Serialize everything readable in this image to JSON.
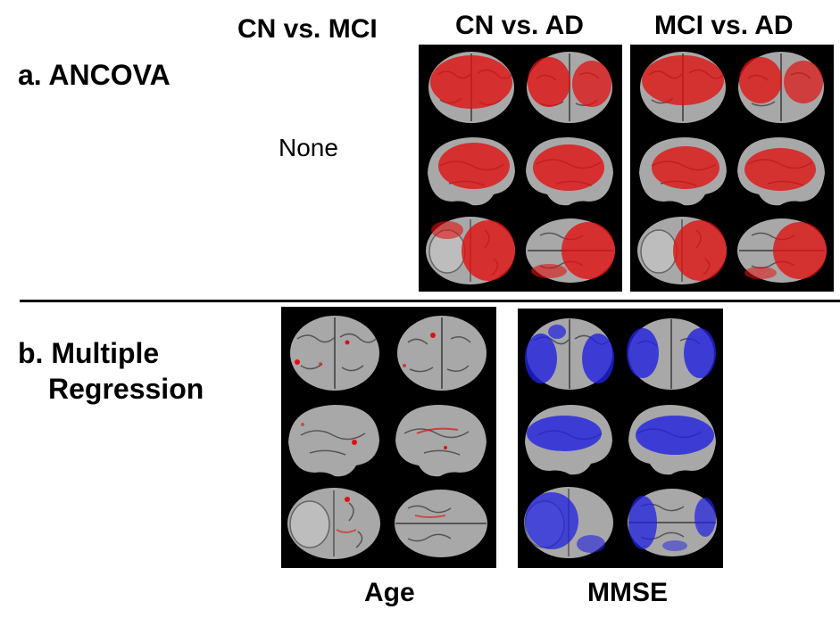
{
  "columns": {
    "cn_mci": "CN vs. MCI",
    "cn_ad": "CN vs. AD",
    "mci_ad": "MCI vs. AD"
  },
  "section_a": {
    "letter": "a.",
    "title": "ANCOVA",
    "none_label": "None"
  },
  "section_b": {
    "letter": "b.",
    "title_line1": "Multiple",
    "title_line2": "Regression"
  },
  "captions": {
    "age": "Age",
    "mmse": "MMSE"
  },
  "colors": {
    "ancova_overlay": "#e01010",
    "age_overlay": "#e01010",
    "mmse_overlay": "#2020e0",
    "brain_base": "#a8a8a8",
    "panel_bg": "#000000"
  },
  "panels": {
    "cn_ad": {
      "overlay": "red",
      "coverage": 0.75
    },
    "mci_ad": {
      "overlay": "red",
      "coverage": 0.72
    },
    "age": {
      "overlay": "red",
      "coverage": 0.08
    },
    "mmse": {
      "overlay": "blue",
      "coverage": 0.55
    }
  },
  "views": [
    "frontal",
    "posterior",
    "left-lateral",
    "right-lateral",
    "inferior",
    "superior"
  ]
}
